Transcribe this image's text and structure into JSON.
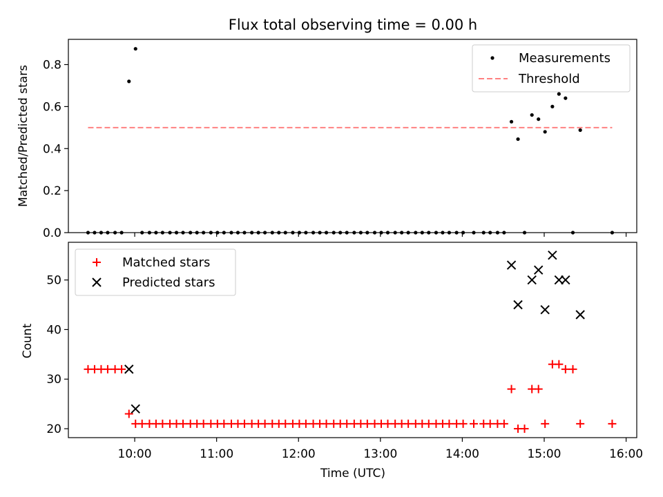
{
  "chart_data": [
    {
      "type": "scatter",
      "title": "Flux total observing time = 0.00 h",
      "xlabel": "",
      "ylabel": "Matched/Predicted stars",
      "xlim": [
        9.19,
        16.13
      ],
      "ylim": [
        0.0,
        0.92
      ],
      "yticks": [
        0.0,
        0.2,
        0.4,
        0.6,
        0.8
      ],
      "ytick_labels": [
        "0.0",
        "0.2",
        "0.4",
        "0.6",
        "0.8"
      ],
      "legend_position": "top-right",
      "series": [
        {
          "name": "Measurements",
          "marker": "dot",
          "color": "#000000",
          "x": [
            9.43,
            9.51,
            9.59,
            9.67,
            9.76,
            9.84,
            9.93,
            10.01,
            10.09,
            10.18,
            10.26,
            10.34,
            10.43,
            10.51,
            10.59,
            10.68,
            10.76,
            10.84,
            10.93,
            11.01,
            11.09,
            11.18,
            11.26,
            11.34,
            11.43,
            11.51,
            11.59,
            11.68,
            11.76,
            11.84,
            11.93,
            12.01,
            12.09,
            12.18,
            12.26,
            12.34,
            12.43,
            12.51,
            12.59,
            12.68,
            12.76,
            12.84,
            12.93,
            13.01,
            13.09,
            13.18,
            13.26,
            13.34,
            13.43,
            13.51,
            13.59,
            13.68,
            13.76,
            13.84,
            13.93,
            14.01,
            14.14,
            14.26,
            14.34,
            14.43,
            14.51,
            14.6,
            14.68,
            14.76,
            14.85,
            14.93,
            15.01,
            15.1,
            15.18,
            15.26,
            15.35,
            15.44,
            15.83
          ],
          "y": [
            0,
            0,
            0,
            0,
            0,
            0,
            0.72,
            0.875,
            0,
            0,
            0,
            0,
            0,
            0,
            0,
            0,
            0,
            0,
            0,
            0,
            0,
            0,
            0,
            0,
            0,
            0,
            0,
            0,
            0,
            0,
            0,
            0,
            0,
            0,
            0,
            0,
            0,
            0,
            0,
            0,
            0,
            0,
            0,
            0,
            0,
            0,
            0,
            0,
            0,
            0,
            0,
            0,
            0,
            0,
            0,
            0,
            0,
            0,
            0,
            0,
            0,
            0.528,
            0.445,
            0,
            0.56,
            0.54,
            0.48,
            0.6,
            0.66,
            0.64,
            0,
            0.488,
            0
          ]
        },
        {
          "name": "Threshold",
          "marker": "dashed-line",
          "color": "#ff8080",
          "x": [
            9.43,
            15.83
          ],
          "y": [
            0.5,
            0.5
          ]
        }
      ]
    },
    {
      "type": "scatter",
      "title": "",
      "xlabel": "Time (UTC)",
      "ylabel": "Count",
      "xlim": [
        9.19,
        16.13
      ],
      "ylim": [
        18.2,
        57.6
      ],
      "xticks": [
        10,
        11,
        12,
        13,
        14,
        15,
        16
      ],
      "xtick_labels": [
        "10:00",
        "11:00",
        "12:00",
        "13:00",
        "14:00",
        "15:00",
        "16:00"
      ],
      "yticks": [
        20,
        30,
        40,
        50
      ],
      "ytick_labels": [
        "20",
        "30",
        "40",
        "50"
      ],
      "legend_position": "top-left",
      "series": [
        {
          "name": "Matched stars",
          "marker": "plus",
          "color": "#ff0000",
          "x": [
            9.43,
            9.51,
            9.59,
            9.67,
            9.76,
            9.84,
            9.93,
            10.01,
            10.09,
            10.18,
            10.26,
            10.34,
            10.43,
            10.51,
            10.59,
            10.68,
            10.76,
            10.84,
            10.93,
            11.01,
            11.09,
            11.18,
            11.26,
            11.34,
            11.43,
            11.51,
            11.59,
            11.68,
            11.76,
            11.84,
            11.93,
            12.01,
            12.09,
            12.18,
            12.26,
            12.34,
            12.43,
            12.51,
            12.59,
            12.68,
            12.76,
            12.84,
            12.93,
            13.01,
            13.09,
            13.18,
            13.26,
            13.34,
            13.43,
            13.51,
            13.59,
            13.68,
            13.76,
            13.84,
            13.93,
            14.01,
            14.14,
            14.26,
            14.34,
            14.43,
            14.51,
            14.6,
            14.68,
            14.76,
            14.85,
            14.93,
            15.01,
            15.1,
            15.18,
            15.26,
            15.35,
            15.44,
            15.83
          ],
          "y": [
            32,
            32,
            32,
            32,
            32,
            32,
            23,
            21,
            21,
            21,
            21,
            21,
            21,
            21,
            21,
            21,
            21,
            21,
            21,
            21,
            21,
            21,
            21,
            21,
            21,
            21,
            21,
            21,
            21,
            21,
            21,
            21,
            21,
            21,
            21,
            21,
            21,
            21,
            21,
            21,
            21,
            21,
            21,
            21,
            21,
            21,
            21,
            21,
            21,
            21,
            21,
            21,
            21,
            21,
            21,
            21,
            21,
            21,
            21,
            21,
            21,
            28,
            20,
            20,
            28,
            28,
            21,
            33,
            33,
            32,
            32,
            21,
            21
          ]
        },
        {
          "name": "Predicted stars",
          "marker": "x",
          "color": "#000000",
          "x": [
            9.93,
            10.01,
            14.6,
            14.68,
            14.85,
            14.93,
            15.01,
            15.1,
            15.18,
            15.26,
            15.44
          ],
          "y": [
            32,
            24,
            53,
            45,
            50,
            52,
            44,
            55,
            50,
            50,
            43
          ]
        }
      ]
    }
  ]
}
